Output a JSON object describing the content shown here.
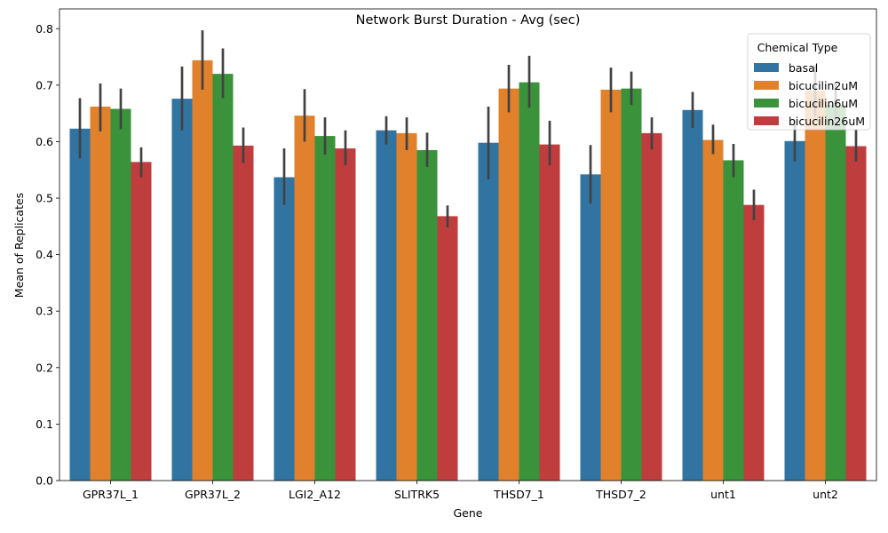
{
  "chart_data": {
    "type": "bar",
    "title": "Network Burst Duration - Avg (sec)",
    "xlabel": "Gene",
    "ylabel": "Mean of Replicates",
    "ylim": [
      0,
      0.835
    ],
    "yticks": [
      "0.0",
      "0.1",
      "0.2",
      "0.3",
      "0.4",
      "0.5",
      "0.6",
      "0.7",
      "0.8"
    ],
    "categories": [
      "GPR37L_1",
      "GPR37L_2",
      "LGI2_A12",
      "SLITRK5",
      "THSD7_1",
      "THSD7_2",
      "unt1",
      "unt2"
    ],
    "legend": {
      "title": "Chemical Type",
      "position": "top-right"
    },
    "grid": false,
    "series": [
      {
        "name": "basal",
        "color": "#3274a1",
        "values": [
          0.623,
          0.676,
          0.537,
          0.62,
          0.598,
          0.542,
          0.656,
          0.601
        ],
        "ci_low": [
          0.57,
          0.62,
          0.488,
          0.595,
          0.533,
          0.49,
          0.624,
          0.565
        ],
        "ci_high": [
          0.677,
          0.733,
          0.588,
          0.645,
          0.662,
          0.594,
          0.688,
          0.64
        ]
      },
      {
        "name": "bicucilin2uM",
        "color": "#e1812c",
        "values": [
          0.662,
          0.744,
          0.646,
          0.615,
          0.694,
          0.692,
          0.603,
          0.69
        ],
        "ci_low": [
          0.618,
          0.692,
          0.6,
          0.585,
          0.652,
          0.652,
          0.578,
          0.645
        ],
        "ci_high": [
          0.703,
          0.797,
          0.693,
          0.643,
          0.736,
          0.731,
          0.63,
          0.735
        ]
      },
      {
        "name": "bicucilin6uM",
        "color": "#3a923a",
        "values": [
          0.658,
          0.72,
          0.61,
          0.585,
          0.705,
          0.694,
          0.567,
          0.665
        ],
        "ci_low": [
          0.622,
          0.677,
          0.577,
          0.555,
          0.66,
          0.665,
          0.537,
          0.625
        ],
        "ci_high": [
          0.694,
          0.765,
          0.643,
          0.616,
          0.752,
          0.724,
          0.596,
          0.705
        ]
      },
      {
        "name": "bicucilin26uM",
        "color": "#c03d3e",
        "values": [
          0.564,
          0.593,
          0.588,
          0.468,
          0.595,
          0.615,
          0.488,
          0.592
        ],
        "ci_low": [
          0.537,
          0.562,
          0.558,
          0.448,
          0.558,
          0.586,
          0.461,
          0.565
        ],
        "ci_high": [
          0.59,
          0.625,
          0.62,
          0.487,
          0.637,
          0.643,
          0.515,
          0.621
        ]
      }
    ]
  }
}
